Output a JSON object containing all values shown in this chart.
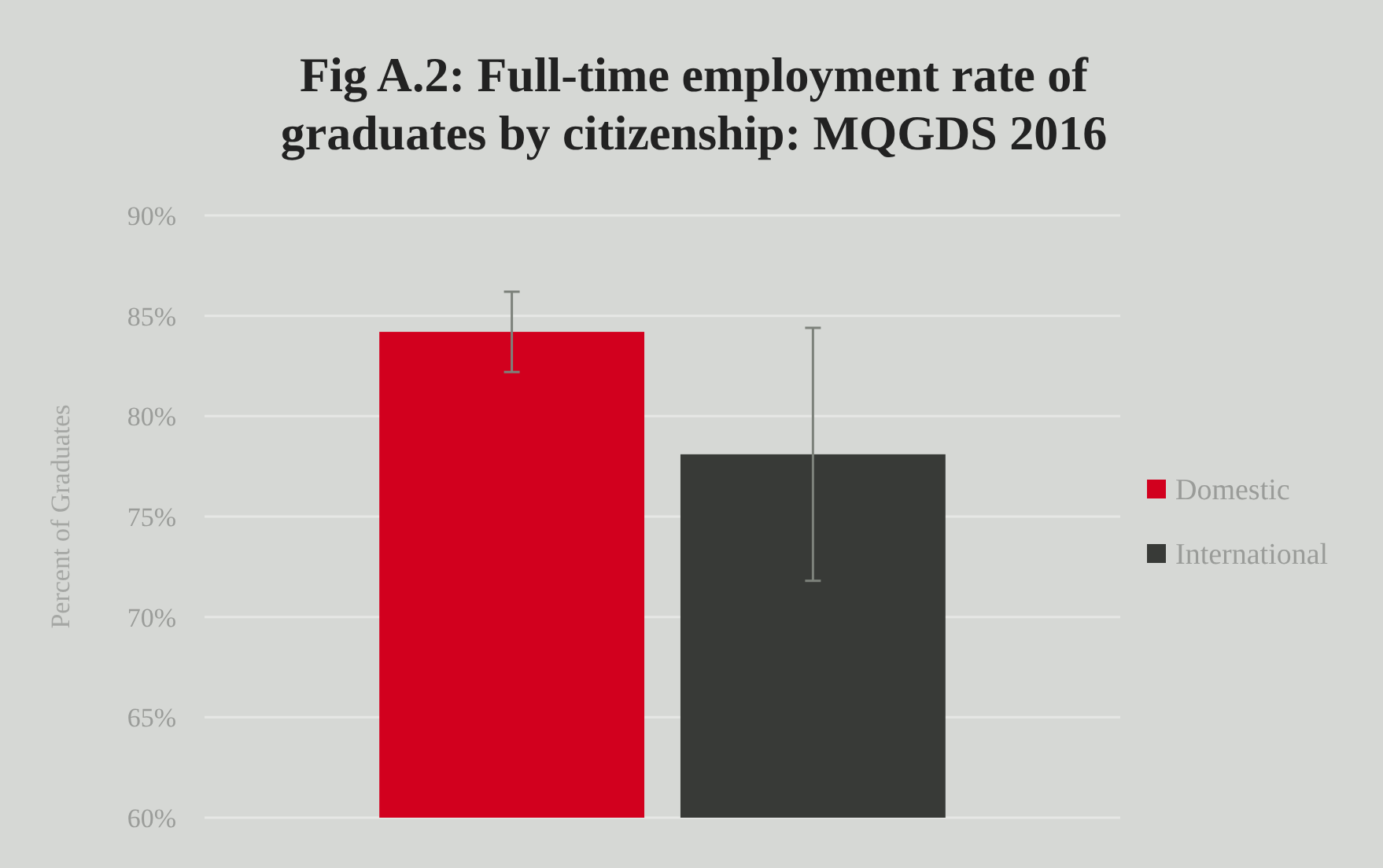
{
  "chart_data": {
    "type": "bar",
    "title": "Fig A.2: Full-time employment rate of graduates by citizenship: MQGDS 2016",
    "ylabel": "Percent of Graduates",
    "categories": [
      null
    ],
    "series": [
      {
        "name": "Domestic",
        "color": "#d2001e",
        "values": [
          84.2
        ],
        "errors": [
          2
        ]
      },
      {
        "name": "International",
        "color": "#383a37",
        "values": [
          78.1
        ],
        "errors": [
          6.3
        ]
      }
    ],
    "ylim": [
      60,
      90
    ],
    "yticks": [
      {
        "value": 60,
        "label": "60%"
      },
      {
        "value": 65,
        "label": "65%"
      },
      {
        "value": 70,
        "label": "70%"
      },
      {
        "value": 75,
        "label": "75%"
      },
      {
        "value": 80,
        "label": "80%"
      },
      {
        "value": 85,
        "label": "85%"
      },
      {
        "value": 90,
        "label": "90%"
      }
    ],
    "grid": "y",
    "legend": "right"
  }
}
